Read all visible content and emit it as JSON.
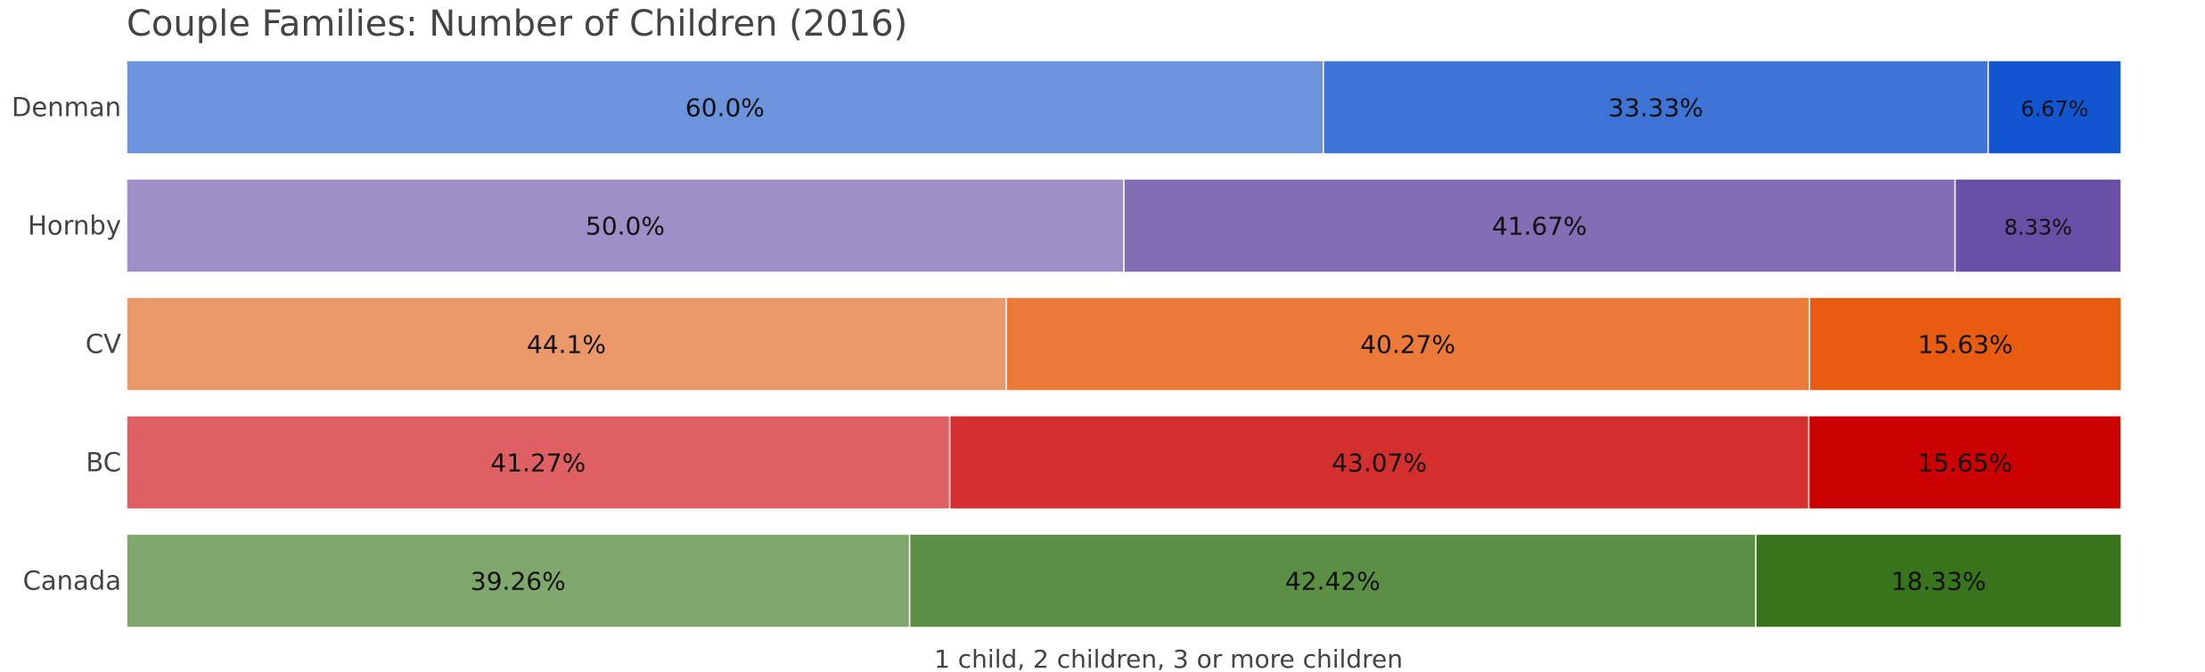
{
  "chart_data": {
    "type": "bar",
    "orientation": "horizontal",
    "stacked": true,
    "title": "Couple Families: Number of Children (2016)",
    "xlabel": "1 child, 2 children, 3 or more children",
    "ylabel": "",
    "xlim": [
      0,
      100
    ],
    "grid": false,
    "categories": [
      "Denman",
      "Hornby",
      "CV",
      "BC",
      "Canada"
    ],
    "series": [
      {
        "values": [
          60.0,
          50.0,
          44.1,
          41.27,
          39.26
        ],
        "labels": [
          "60.0%",
          "50.0%",
          "44.1%",
          "41.27%",
          "39.26%"
        ]
      },
      {
        "values": [
          33.33,
          41.67,
          40.27,
          43.07,
          42.42
        ],
        "labels": [
          "33.33%",
          "41.67%",
          "40.27%",
          "43.07%",
          "42.42%"
        ]
      },
      {
        "values": [
          6.67,
          8.33,
          15.63,
          15.65,
          18.33
        ],
        "labels": [
          "6.67%",
          "8.33%",
          "15.63%",
          "15.65%",
          "18.33%"
        ]
      }
    ],
    "colors": {
      "Denman": [
        "#6b94dc",
        "#3e74d6",
        "#1255d0"
      ],
      "Hornby": [
        "#9e90c6",
        "#836db4",
        "#684fa6"
      ],
      "CV": [
        "#eb996b",
        "#eb7a3b",
        "#e85c10"
      ],
      "BC": [
        "#de6063",
        "#d32f2f",
        "#cb0000"
      ],
      "Canada": [
        "#80a86c",
        "#5b8f43",
        "#37741c"
      ]
    }
  }
}
